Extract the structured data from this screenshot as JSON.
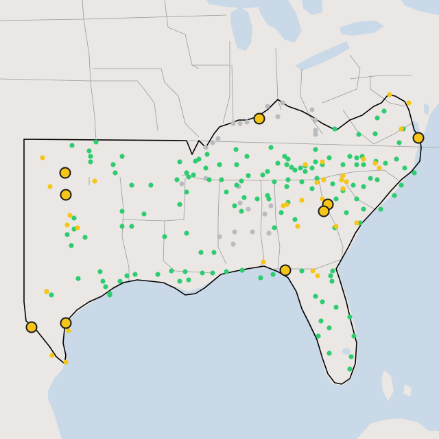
{
  "map": {
    "colors": {
      "land": "#ebe7e4",
      "water": "#c9d9e8",
      "state_border": "#9a9a9a",
      "region_outline": "#000000",
      "dot_green": "#2ecc71",
      "dot_yellow": "#f5c518",
      "dot_gray": "#b8bcc0",
      "marker_fill": "#f5c518",
      "marker_stroke": "#1a1a1a"
    },
    "legend": []
  }
}
